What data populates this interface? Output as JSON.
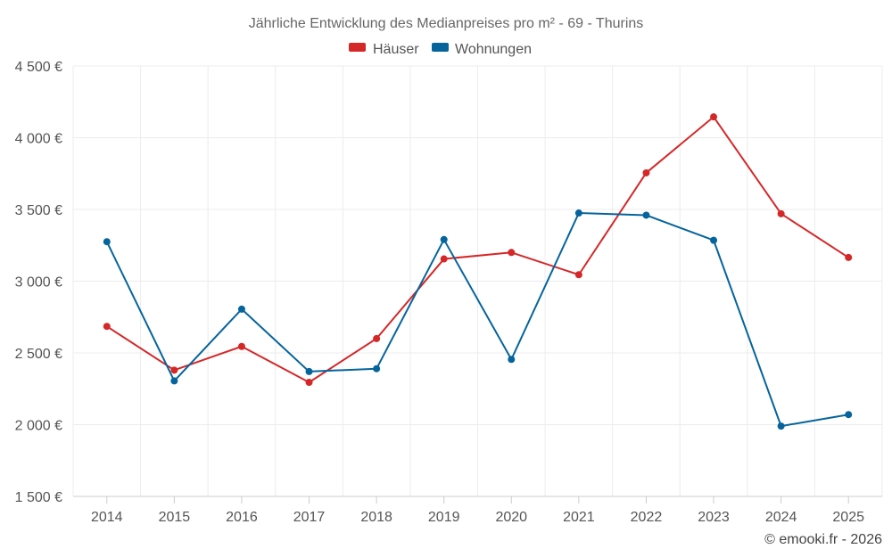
{
  "chart_data": {
    "type": "line",
    "title": "Jährliche Entwicklung des Medianpreises pro m² - 69 - Thurins",
    "categories": [
      "2014",
      "2015",
      "2016",
      "2017",
      "2018",
      "2019",
      "2020",
      "2021",
      "2022",
      "2023",
      "2024",
      "2025"
    ],
    "series": [
      {
        "name": "Häuser",
        "color": "#d62728",
        "values": [
          2685,
          2380,
          2545,
          2295,
          2600,
          3155,
          3200,
          3045,
          3755,
          4145,
          3470,
          3165
        ]
      },
      {
        "name": "Wohnungen",
        "color": "#05649c",
        "values": [
          3275,
          2305,
          2805,
          2370,
          2390,
          3290,
          2455,
          3475,
          3460,
          3285,
          1990,
          2070
        ]
      }
    ],
    "ylim": [
      1500,
      4500
    ],
    "yticks": [
      1500,
      2000,
      2500,
      3000,
      3500,
      4000,
      4500
    ],
    "ytick_labels": [
      "1 500 €",
      "2 000 €",
      "2 500 €",
      "3 000 €",
      "3 500 €",
      "4 000 €",
      "4 500 €"
    ],
    "xlabel": "",
    "ylabel": "",
    "grid": true,
    "legend_position": "top-center"
  },
  "credit": "© emooki.fr - 2026"
}
